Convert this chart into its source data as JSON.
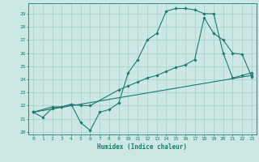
{
  "xlabel": "Humidex (Indice chaleur)",
  "bg_color": "#cce8e5",
  "line_color": "#1a7a6e",
  "grid_color": "#aacfcc",
  "xlim": [
    -0.5,
    23.5
  ],
  "ylim": [
    19.8,
    29.8
  ],
  "yticks": [
    20,
    21,
    22,
    23,
    24,
    25,
    26,
    27,
    28,
    29
  ],
  "xticks": [
    0,
    1,
    2,
    3,
    4,
    5,
    6,
    7,
    8,
    9,
    10,
    11,
    12,
    13,
    14,
    15,
    16,
    17,
    18,
    19,
    20,
    21,
    22,
    23
  ],
  "lines": [
    {
      "x": [
        0,
        1,
        2,
        3,
        4,
        5,
        6,
        7,
        8,
        9,
        10,
        11,
        12,
        13,
        14,
        15,
        16,
        17,
        18,
        19,
        20,
        21,
        22,
        23
      ],
      "y": [
        21.5,
        21.1,
        21.8,
        21.9,
        22.1,
        20.7,
        20.1,
        21.5,
        21.7,
        22.2,
        24.5,
        25.5,
        27.0,
        27.5,
        29.2,
        29.4,
        29.4,
        29.3,
        29.0,
        29.0,
        26.0,
        24.1,
        24.3,
        24.5
      ]
    },
    {
      "x": [
        0,
        2,
        3,
        4,
        5,
        6,
        9,
        10,
        11,
        12,
        13,
        14,
        15,
        16,
        17,
        18,
        19,
        20,
        21,
        22,
        23
      ],
      "y": [
        21.5,
        21.9,
        21.9,
        22.1,
        22.0,
        22.0,
        23.2,
        23.5,
        23.8,
        24.1,
        24.3,
        24.6,
        24.9,
        25.1,
        25.5,
        28.7,
        27.5,
        27.0,
        26.0,
        25.9,
        24.2
      ]
    },
    {
      "x": [
        0,
        23
      ],
      "y": [
        21.5,
        24.3
      ]
    }
  ]
}
